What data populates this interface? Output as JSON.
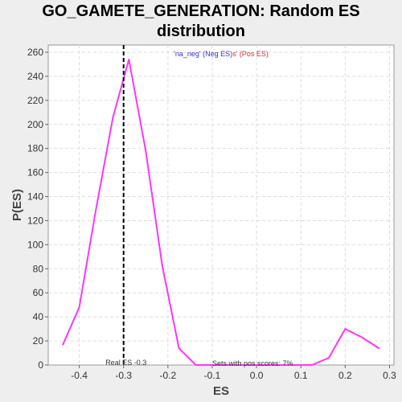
{
  "chart_data": {
    "type": "line",
    "title_line1": "GO_GAMETE_GENERATION: Random ES",
    "title_line2": "distribution",
    "xlabel": "ES",
    "ylabel": "P(ES)",
    "xlim": [
      -0.47,
      0.31
    ],
    "ylim": [
      0,
      266
    ],
    "xticks": [
      -0.4,
      -0.3,
      -0.2,
      -0.1,
      0.0,
      0.1,
      0.2,
      0.3
    ],
    "xtick_labels": [
      "-0.4",
      "-0.3",
      "-0.2",
      "-0.1",
      "0.0",
      "0.1",
      "0.2",
      "0.3"
    ],
    "yticks": [
      0,
      20,
      40,
      60,
      80,
      100,
      120,
      140,
      160,
      180,
      200,
      220,
      240,
      260
    ],
    "grid": true,
    "line_color": "#ff33ff",
    "series": [
      {
        "x": [
          -0.437,
          -0.4,
          -0.363,
          -0.324,
          -0.288,
          -0.25,
          -0.213,
          -0.175,
          -0.137,
          -0.1,
          -0.062,
          -0.025,
          0.013,
          0.05,
          0.088,
          0.125,
          0.163,
          0.2,
          0.238,
          0.276
        ],
        "y": [
          17,
          48,
          128,
          206,
          254,
          178,
          83,
          14,
          0,
          0,
          0,
          0,
          0,
          0,
          0,
          0,
          6,
          30,
          23,
          14
        ]
      }
    ],
    "real_es": -0.3,
    "real_es_label": "Real ES -0.3",
    "legend_neg": "'na_neg' (Neg ES)",
    "legend_pos": "s' (Pos ES)",
    "legend_neg_color": "#3333cc",
    "legend_pos_color": "#cc3333",
    "annotation": "Sets with pos scores: 7%"
  }
}
